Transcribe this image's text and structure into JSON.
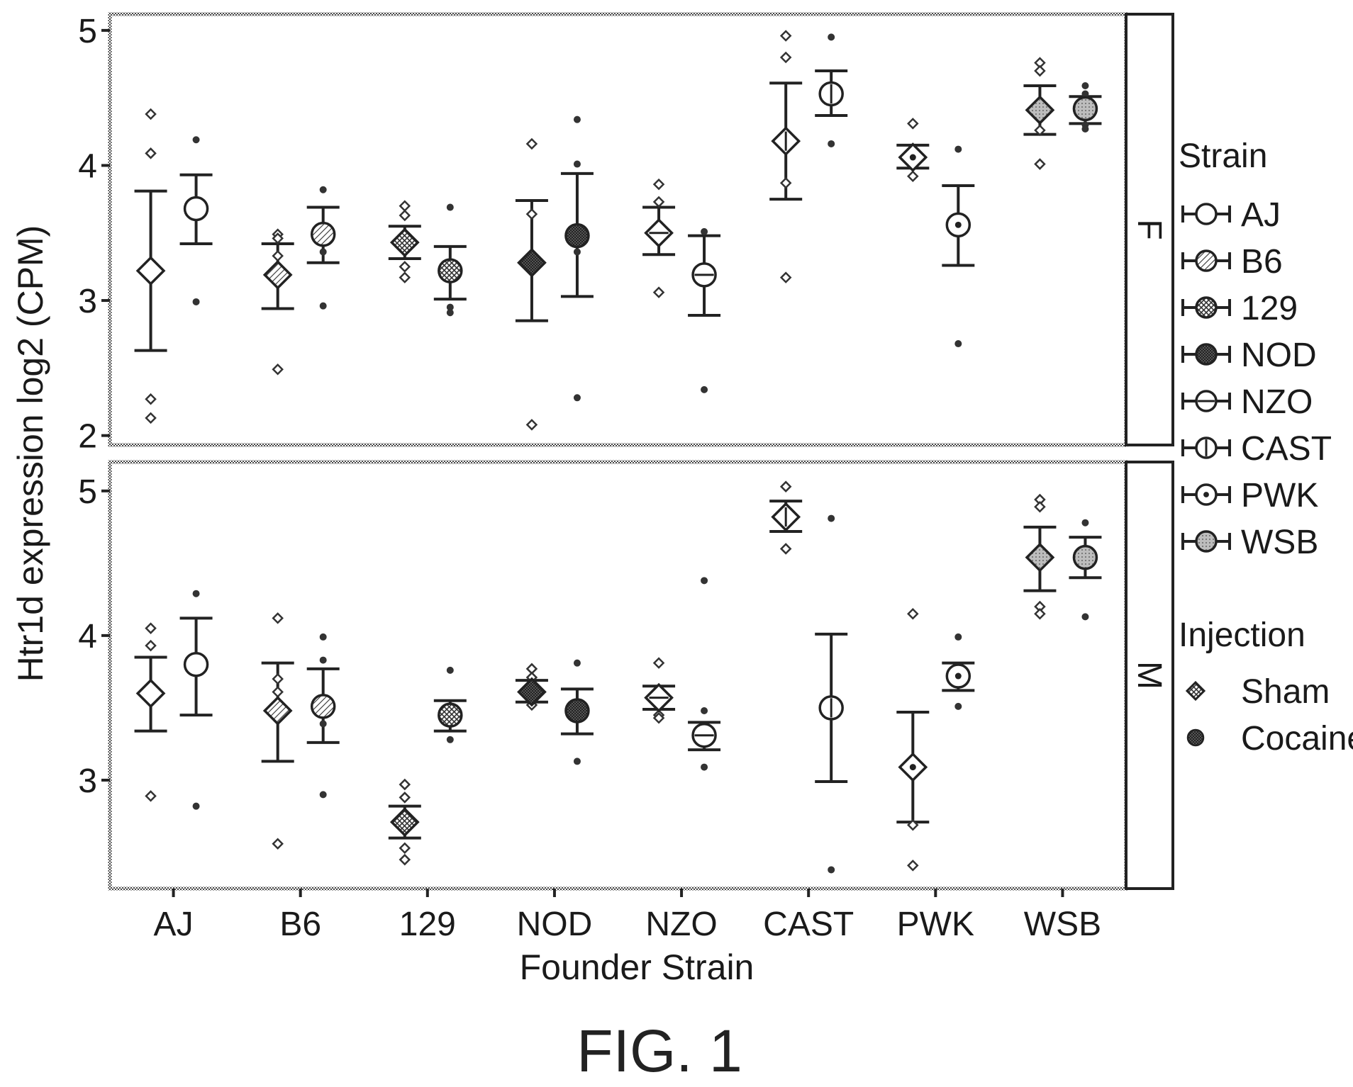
{
  "figure_label": "FIG. 1",
  "chart_data": {
    "type": "scatter",
    "xlabel": "Founder Strain",
    "ylabel": "Htr1d expression log2 (CPM)",
    "categories": [
      "AJ",
      "B6",
      "129",
      "NOD",
      "NZO",
      "CAST",
      "PWK",
      "WSB"
    ],
    "grid": false,
    "legend_position": "right",
    "legend": {
      "strain_title": "Strain",
      "strains": [
        "AJ",
        "B6",
        "129",
        "NOD",
        "NZO",
        "CAST",
        "PWK",
        "WSB"
      ],
      "injection_title": "Injection",
      "injections": [
        "Sham",
        "Cocaine"
      ]
    },
    "panels": [
      {
        "facet": "F",
        "ylim": [
          1.93,
          5.12
        ],
        "yticks": [
          2,
          3,
          4,
          5
        ],
        "groups": [
          {
            "strain": "AJ",
            "injection": "Sham",
            "mean": 3.22,
            "lower": 2.63,
            "upper": 3.81,
            "points": [
              4.38,
              4.09,
              2.27,
              2.13
            ]
          },
          {
            "strain": "AJ",
            "injection": "Cocaine",
            "mean": 3.68,
            "lower": 3.42,
            "upper": 3.93,
            "points": [
              4.19,
              2.99
            ]
          },
          {
            "strain": "B6",
            "injection": "Sham",
            "mean": 3.19,
            "lower": 2.94,
            "upper": 3.42,
            "points": [
              3.49,
              3.46,
              3.33,
              2.49
            ]
          },
          {
            "strain": "B6",
            "injection": "Cocaine",
            "mean": 3.49,
            "lower": 3.28,
            "upper": 3.69,
            "points": [
              3.82,
              3.36,
              2.96
            ]
          },
          {
            "strain": "129",
            "injection": "Sham",
            "mean": 3.43,
            "lower": 3.31,
            "upper": 3.55,
            "points": [
              3.7,
              3.63,
              3.25,
              3.17
            ]
          },
          {
            "strain": "129",
            "injection": "Cocaine",
            "mean": 3.22,
            "lower": 3.01,
            "upper": 3.4,
            "points": [
              3.69,
              2.95,
              2.91
            ]
          },
          {
            "strain": "NOD",
            "injection": "Sham",
            "mean": 3.28,
            "lower": 2.85,
            "upper": 3.74,
            "points": [
              4.16,
              3.64,
              2.08
            ]
          },
          {
            "strain": "NOD",
            "injection": "Cocaine",
            "mean": 3.48,
            "lower": 3.03,
            "upper": 3.94,
            "points": [
              4.34,
              4.01,
              3.36,
              2.28
            ]
          },
          {
            "strain": "NZO",
            "injection": "Sham",
            "mean": 3.5,
            "lower": 3.34,
            "upper": 3.69,
            "points": [
              3.86,
              3.73,
              3.06
            ]
          },
          {
            "strain": "NZO",
            "injection": "Cocaine",
            "mean": 3.19,
            "lower": 2.89,
            "upper": 3.48,
            "points": [
              3.51,
              2.34
            ]
          },
          {
            "strain": "CAST",
            "injection": "Sham",
            "mean": 4.18,
            "lower": 3.75,
            "upper": 4.61,
            "points": [
              4.96,
              4.8,
              3.87,
              3.17
            ]
          },
          {
            "strain": "CAST",
            "injection": "Cocaine",
            "mean": 4.53,
            "lower": 4.37,
            "upper": 4.7,
            "points": [
              4.95,
              4.16
            ]
          },
          {
            "strain": "PWK",
            "injection": "Sham",
            "mean": 4.06,
            "lower": 3.98,
            "upper": 4.15,
            "points": [
              4.31,
              4.07,
              3.92
            ]
          },
          {
            "strain": "PWK",
            "injection": "Cocaine",
            "mean": 3.56,
            "lower": 3.26,
            "upper": 3.85,
            "points": [
              4.12,
              2.68
            ]
          },
          {
            "strain": "WSB",
            "injection": "Sham",
            "mean": 4.41,
            "lower": 4.23,
            "upper": 4.59,
            "points": [
              4.76,
              4.7,
              4.26,
              4.01
            ]
          },
          {
            "strain": "WSB",
            "injection": "Cocaine",
            "mean": 4.42,
            "lower": 4.31,
            "upper": 4.51,
            "points": [
              4.59,
              4.53,
              4.3,
              4.27
            ]
          }
        ]
      },
      {
        "facet": "M",
        "ylim": [
          2.25,
          5.2
        ],
        "yticks": [
          3,
          4,
          5
        ],
        "groups": [
          {
            "strain": "AJ",
            "injection": "Sham",
            "mean": 3.6,
            "lower": 3.34,
            "upper": 3.85,
            "points": [
              4.05,
              3.93,
              2.89
            ]
          },
          {
            "strain": "AJ",
            "injection": "Cocaine",
            "mean": 3.8,
            "lower": 3.45,
            "upper": 4.12,
            "points": [
              4.29,
              2.82
            ]
          },
          {
            "strain": "B6",
            "injection": "Sham",
            "mean": 3.48,
            "lower": 3.13,
            "upper": 3.81,
            "points": [
              4.12,
              3.7,
              3.61,
              2.56
            ]
          },
          {
            "strain": "B6",
            "injection": "Cocaine",
            "mean": 3.51,
            "lower": 3.26,
            "upper": 3.77,
            "points": [
              3.99,
              3.83,
              3.39,
              2.9
            ]
          },
          {
            "strain": "129",
            "injection": "Sham",
            "mean": 2.71,
            "lower": 2.6,
            "upper": 2.82,
            "points": [
              2.97,
              2.88,
              2.53,
              2.45
            ]
          },
          {
            "strain": "129",
            "injection": "Cocaine",
            "mean": 3.45,
            "lower": 3.34,
            "upper": 3.55,
            "points": [
              3.76,
              3.28
            ]
          },
          {
            "strain": "NOD",
            "injection": "Sham",
            "mean": 3.61,
            "lower": 3.54,
            "upper": 3.69,
            "points": [
              3.77,
              3.71,
              3.56,
              3.52
            ]
          },
          {
            "strain": "NOD",
            "injection": "Cocaine",
            "mean": 3.48,
            "lower": 3.32,
            "upper": 3.63,
            "points": [
              3.81,
              3.13
            ]
          },
          {
            "strain": "NZO",
            "injection": "Sham",
            "mean": 3.57,
            "lower": 3.49,
            "upper": 3.65,
            "points": [
              3.81,
              3.58,
              3.45,
              3.43
            ]
          },
          {
            "strain": "NZO",
            "injection": "Cocaine",
            "mean": 3.31,
            "lower": 3.21,
            "upper": 3.4,
            "points": [
              4.38,
              3.48,
              3.09
            ]
          },
          {
            "strain": "CAST",
            "injection": "Sham",
            "mean": 4.82,
            "lower": 4.72,
            "upper": 4.93,
            "points": [
              5.03,
              4.86,
              4.79,
              4.6
            ]
          },
          {
            "strain": "CAST",
            "injection": "Cocaine",
            "mean": 3.5,
            "lower": 2.99,
            "upper": 4.01,
            "points": [
              4.81,
              2.38
            ]
          },
          {
            "strain": "PWK",
            "injection": "Sham",
            "mean": 3.09,
            "lower": 2.71,
            "upper": 3.47,
            "points": [
              4.15,
              2.69,
              2.41
            ]
          },
          {
            "strain": "PWK",
            "injection": "Cocaine",
            "mean": 3.72,
            "lower": 3.62,
            "upper": 3.81,
            "points": [
              3.99,
              3.51
            ]
          },
          {
            "strain": "WSB",
            "injection": "Sham",
            "mean": 4.54,
            "lower": 4.31,
            "upper": 4.75,
            "points": [
              4.94,
              4.89,
              4.2,
              4.15
            ]
          },
          {
            "strain": "WSB",
            "injection": "Cocaine",
            "mean": 4.54,
            "lower": 4.4,
            "upper": 4.68,
            "points": [
              4.78,
              4.13
            ]
          }
        ]
      }
    ]
  }
}
